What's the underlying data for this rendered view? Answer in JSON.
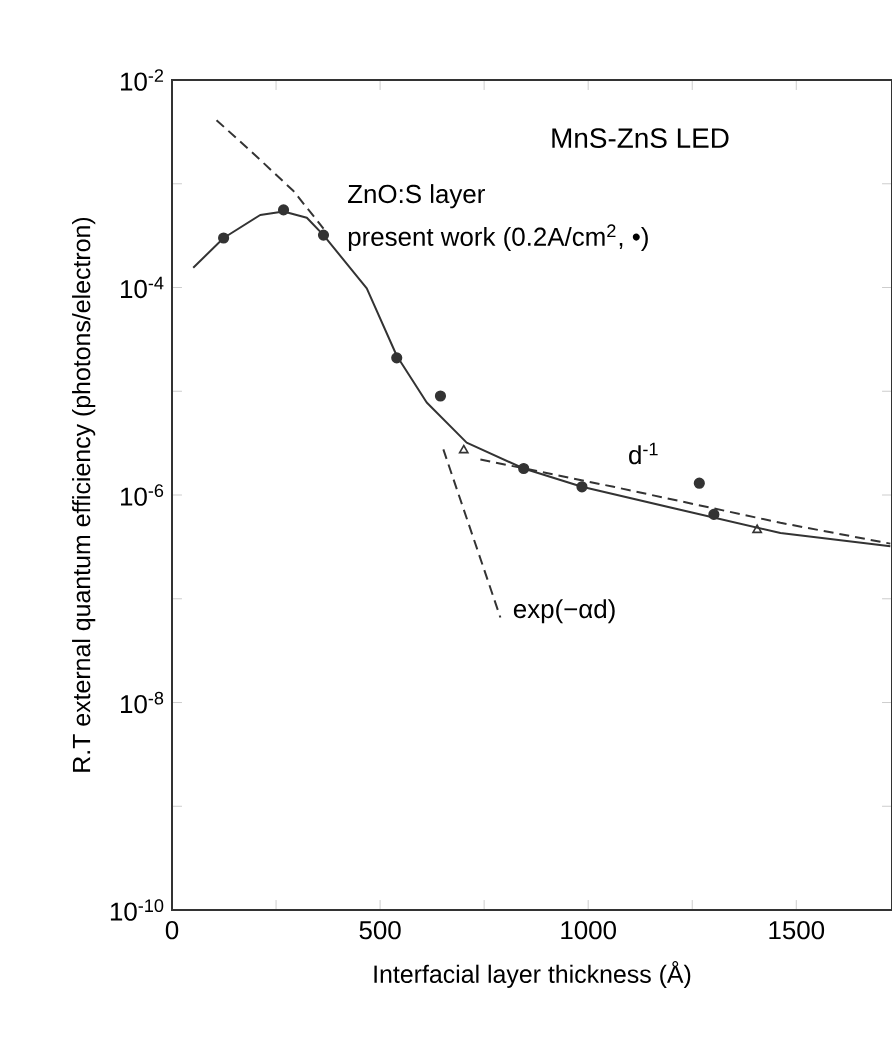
{
  "chart_data": {
    "type": "line",
    "title": "MnS-ZnS LED",
    "xlabel": "Interfacial layer thickness (Å)",
    "ylabel": "R.T external quantum efficiency (photons/electron)",
    "log": "y",
    "grid": false,
    "xlim": [
      0,
      1730
    ],
    "ylim": [
      1e-10,
      0.01
    ],
    "xticks": [
      0,
      {
        "value": 250,
        "label": null
      },
      500,
      {
        "value": 750,
        "label": null
      },
      1000,
      {
        "value": 1250,
        "label": null
      },
      1500
    ],
    "yticks": [
      {
        "value": 1e-10,
        "label": "10$^{-10}$"
      },
      {
        "value": 1e-09,
        "label": null
      },
      {
        "value": 1e-08,
        "label": "10$^{-8}$"
      },
      {
        "value": 1e-07,
        "label": null
      },
      {
        "value": 1e-06,
        "label": "10$^{-6}$"
      },
      {
        "value": 1e-05,
        "label": null
      },
      {
        "value": 0.0001,
        "label": "10$^{-4}$"
      },
      {
        "value": 0.001,
        "label": null
      },
      {
        "value": 0.01,
        "label": "10$^{-2}$"
      }
    ],
    "annotations": [
      "ZnO:S layer",
      "present work (0.2A/cm$^{2}$, •)",
      "d$^{-1}$",
      "exp(−αd)"
    ],
    "series": [
      {
        "line_style": "solid",
        "marker": "none",
        "color": "#333333",
        "x": [
          51,
          124,
          212,
          268,
          324,
          364,
          468,
          540,
          612,
          708,
          845,
          985,
          1221,
          1462,
          1726
        ],
        "values": [
          0.000155,
          0.0003,
          0.0005,
          0.00054,
          0.00047,
          0.00032,
          9.8e-05,
          2.2e-05,
          7.8e-06,
          3.2e-06,
          1.8e-06,
          1.2e-06,
          7.2e-07,
          4.3e-07,
          3.2e-07
        ]
      },
      {
        "line_style": "dashed",
        "marker": "none",
        "color": "#333333",
        "x": [
          107,
          196,
          292,
          364
        ],
        "values": [
          0.0041,
          0.00195,
          0.00085,
          0.00037
        ]
      },
      {
        "line_style": "dashed",
        "marker": "none",
        "color": "#333333",
        "x": [
          652,
          789
        ],
        "values": [
          2.75e-06,
          6.6e-08
        ]
      },
      {
        "line_style": "dashed",
        "marker": "none",
        "color": "#333333",
        "x": [
          741,
          1061,
          1462,
          1726
        ],
        "values": [
          2.2e-06,
          1.2e-06,
          5.4e-07,
          3.4e-07
        ]
      },
      {
        "type": "scatter",
        "marker": "circle",
        "color": "#333333",
        "x": [
          124,
          268,
          364,
          540,
          645,
          845,
          985,
          1302
        ],
        "values": [
          0.0003,
          0.00056,
          0.00032,
          2.1e-05,
          9e-06,
          1.8e-06,
          1.2e-06,
          6.5e-07
        ]
      },
      {
        "type": "scatter",
        "marker": "circle",
        "color": "#333333",
        "x": [
          1267
        ],
        "values": [
          1.3e-06
        ]
      },
      {
        "type": "scatter",
        "marker": "triangle",
        "color": "#333333",
        "x": [
          701,
          1406
        ],
        "values": [
          2.7e-06,
          4.6e-07
        ]
      }
    ]
  }
}
